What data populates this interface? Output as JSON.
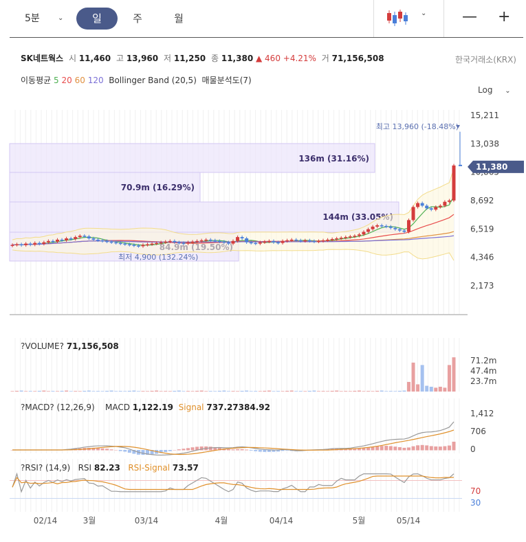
{
  "toolbar": {
    "interval": "5분",
    "day": "일",
    "week": "주",
    "month": "월",
    "zoom_out": "—",
    "zoom_in": "+"
  },
  "quote": {
    "name": "SK네트웍스",
    "open_label": "시",
    "open": "11,460",
    "high_label": "고",
    "high": "13,960",
    "low_label": "저",
    "low": "11,250",
    "close_label": "종",
    "close": "11,380",
    "change": "▲ 460 +4.21%",
    "volume_label": "거",
    "volume": "71,156,508",
    "exchange": "한국거래소(KRX)"
  },
  "indicators": {
    "ma_label": "이동평균",
    "ma5": "5",
    "ma20": "20",
    "ma60": "60",
    "ma120": "120",
    "bb": "Bollinger Band (20,5)",
    "vp": "매물분석도(7)",
    "scale": "Log"
  },
  "colors": {
    "up": "#d43c3c",
    "down": "#4a7fd9",
    "accent": "#4a5a8a",
    "ma5": "#4caf50",
    "ma20": "#e84b4b",
    "ma60": "#e09040",
    "ma120": "#7a6fd6"
  },
  "chart_data": [
    {
      "type": "candlestick",
      "y_ticks": [
        "15,211",
        "13,038",
        "10,865",
        "8,692",
        "6,519",
        "4,346",
        "2,173"
      ],
      "y_tick_values": [
        15211,
        13038,
        10865,
        8692,
        6519,
        4346,
        2173
      ],
      "x_ticks": [
        "02/14",
        "3월",
        "03/14",
        "4월",
        "04/14",
        "5월",
        "05/14"
      ],
      "current_price": "11,380",
      "annotations": {
        "high": "최고 13,960 (-18.48%)",
        "low": "최저 4,900 (132.24%)"
      },
      "volume_profile": [
        {
          "label": "136m (31.16%)",
          "price_low": 10865,
          "price_high": 13000
        },
        {
          "label": "70.9m (16.29%)",
          "price_low": 8692,
          "price_high": 10865
        },
        {
          "label": "144m (33.05%)",
          "price_low": 6519,
          "price_high": 8692
        },
        {
          "label": "84.9m (19.50%)",
          "price_low": 4346,
          "price_high": 6519
        }
      ],
      "candles_close": [
        5300,
        5350,
        5280,
        5400,
        5320,
        5450,
        5380,
        5500,
        5600,
        5550,
        5700,
        5650,
        5800,
        5750,
        5900,
        6000,
        5950,
        5800,
        5700,
        5650,
        5600,
        5550,
        5500,
        5450,
        5400,
        5350,
        5300,
        5250,
        5200,
        5300,
        5350,
        5400,
        5450,
        5500,
        5550,
        5600,
        5500,
        5450,
        5400,
        5500,
        5550,
        5600,
        5650,
        5700,
        5650,
        5600,
        5550,
        5500,
        5400,
        5600,
        5900,
        5800,
        5500,
        5450,
        5400,
        5500,
        5550,
        5600,
        5500,
        5450,
        5600,
        5650,
        5700,
        5650,
        5600,
        5650,
        5600,
        5550,
        5600,
        5650,
        5700,
        5750,
        5800,
        5850,
        5900,
        5950,
        6000,
        6100,
        6300,
        6500,
        6700,
        6800,
        6750,
        6700,
        6600,
        6500,
        6400,
        6300,
        7200,
        8200,
        8500,
        8300,
        8100,
        8000,
        8200,
        8300,
        8600,
        8700,
        11380
      ]
    },
    {
      "type": "bar",
      "title": "?VOLUME?",
      "value": "71,156,508",
      "y_ticks": [
        "71.2m",
        "47.4m",
        "23.7m"
      ]
    },
    {
      "type": "line",
      "title": "?MACD? (12,26,9)",
      "macd_label": "MACD",
      "macd": "1,122.19",
      "signal_label": "Signal",
      "signal": "737.27384.92",
      "y_ticks": [
        "1,412",
        "706",
        "0"
      ]
    },
    {
      "type": "line",
      "title": "?RSI? (14,9)",
      "rsi_label": "RSI",
      "rsi": "82.23",
      "rsi_signal_label": "RSI-Signal",
      "rsi_signal": "73.57",
      "y_ticks": [
        "70",
        "30"
      ]
    }
  ]
}
